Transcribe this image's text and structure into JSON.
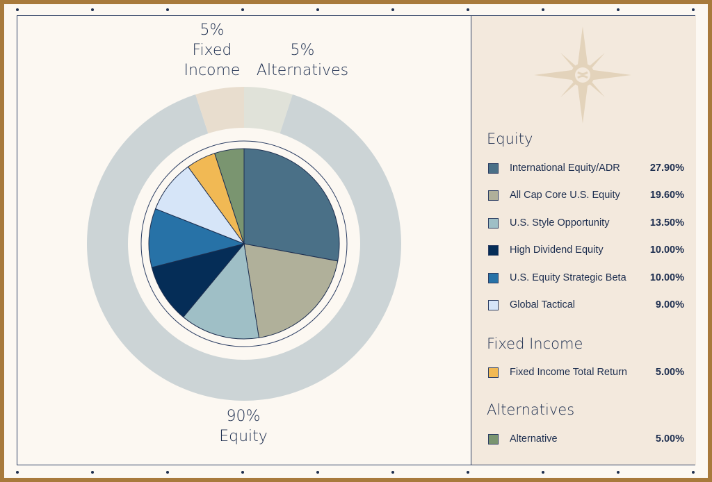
{
  "chart_data": {
    "type": "pie",
    "outer_ring": [
      {
        "pct_label": "90%",
        "name": "Equity",
        "value": 90,
        "color": "#ccd4d6"
      },
      {
        "pct_label": "5%",
        "name": "Fixed Income",
        "value": 5,
        "color": "#e8ddce"
      },
      {
        "pct_label": "5%",
        "name": "Alternatives",
        "value": 5,
        "color": "#e0e2d9"
      }
    ],
    "inner_pie": [
      {
        "name": "International Equity/ADR",
        "value": 27.9,
        "pct": "27.90%",
        "color": "#4a7087"
      },
      {
        "name": "All Cap Core U.S. Equity",
        "value": 19.6,
        "pct": "19.60%",
        "color": "#b0b09a"
      },
      {
        "name": "U.S. Style Opportunity",
        "value": 13.5,
        "pct": "13.50%",
        "color": "#9fbfc6"
      },
      {
        "name": "High Dividend Equity",
        "value": 10.0,
        "pct": "10.00%",
        "color": "#052d57"
      },
      {
        "name": "U.S. Equity Strategic Beta",
        "value": 10.0,
        "pct": "10.00%",
        "color": "#2772a7"
      },
      {
        "name": "Global Tactical",
        "value": 9.0,
        "pct": "9.00%",
        "color": "#d6e5f8"
      },
      {
        "name": "Fixed Income Total Return",
        "value": 5.0,
        "pct": "5.00%",
        "color": "#f1b954"
      },
      {
        "name": "Alternative",
        "value": 5.0,
        "pct": "5.00%",
        "color": "#7a9570"
      }
    ]
  },
  "legend": {
    "equity_title": "Equity",
    "fixed_title": "Fixed Income",
    "alt_title": "Alternatives",
    "items": [
      {
        "label": "International Equity/ADR",
        "pct": "27.90%",
        "color": "#4a7087"
      },
      {
        "label": "All Cap Core U.S. Equity",
        "pct": "19.60%",
        "color": "#b0b09a"
      },
      {
        "label": "U.S. Style Opportunity",
        "pct": "13.50%",
        "color": "#9fbfc6"
      },
      {
        "label": "High Dividend Equity",
        "pct": "10.00%",
        "color": "#052d57"
      },
      {
        "label": "U.S. Equity Strategic Beta",
        "pct": "10.00%",
        "color": "#2772a7"
      },
      {
        "label": "Global Tactical",
        "pct": "9.00%",
        "color": "#d6e5f8"
      },
      {
        "label": "Fixed Income Total Return",
        "pct": "5.00%",
        "color": "#f1b954"
      },
      {
        "label": "Alternative",
        "pct": "5.00%",
        "color": "#7a9570"
      }
    ]
  }
}
